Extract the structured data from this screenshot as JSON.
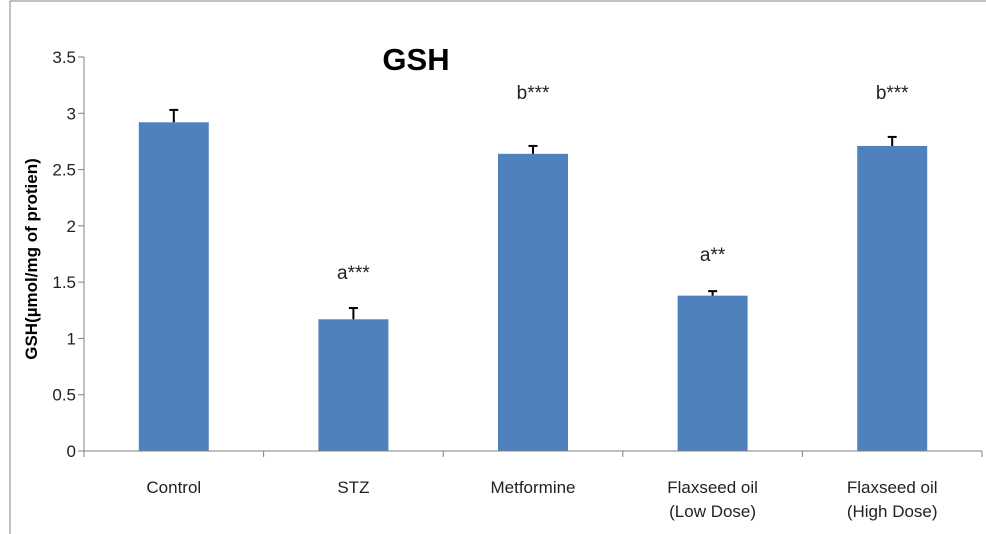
{
  "chart_data": {
    "type": "bar",
    "title": "GSH",
    "xlabel": "",
    "ylabel": "GSH(µmol/mg of protien)",
    "categories": [
      [
        "Control"
      ],
      [
        "STZ"
      ],
      [
        "Metformine"
      ],
      [
        "Flaxseed oil",
        "(Low Dose)"
      ],
      [
        "Flaxseed oil",
        "(High Dose)"
      ]
    ],
    "values": [
      2.92,
      1.17,
      2.64,
      1.38,
      2.71
    ],
    "errors": [
      0.11,
      0.1,
      0.07,
      0.04,
      0.08
    ],
    "annotations": [
      "",
      "a***",
      "b***",
      "a**",
      "b***"
    ],
    "ylim": [
      0,
      3.5
    ],
    "yticks": [
      0,
      0.5,
      1,
      1.5,
      2,
      2.5,
      3,
      3.5
    ],
    "ytick_labels": [
      "0",
      "0.5",
      "1",
      "1.5",
      "2",
      "2.5",
      "3",
      "3.5"
    ],
    "grid": false,
    "legend": false,
    "colors": {
      "bar": "#4f81bd",
      "error_bar": "#000000",
      "axis": "#808080",
      "border": "#808080"
    }
  }
}
